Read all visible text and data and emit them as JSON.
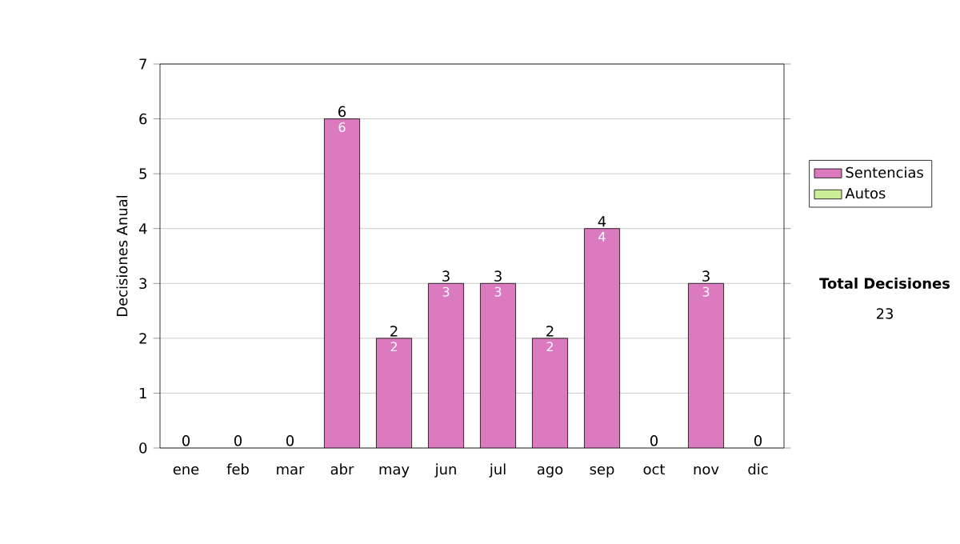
{
  "chart_data": {
    "type": "bar",
    "stacked": true,
    "ylabel": "Decisiones Anual",
    "categories": [
      "ene",
      "feb",
      "mar",
      "abr",
      "may",
      "jun",
      "jul",
      "ago",
      "sep",
      "oct",
      "nov",
      "dic"
    ],
    "series": [
      {
        "name": "Sentencias",
        "color": "#dc7abf",
        "values": [
          0,
          0,
          0,
          6,
          2,
          3,
          3,
          2,
          4,
          0,
          3,
          0
        ],
        "value_labels": [
          null,
          null,
          null,
          "6",
          "2",
          "3",
          "3",
          "2",
          "4",
          null,
          "3",
          null
        ]
      },
      {
        "name": "Autos",
        "color": "#ccee99",
        "values": [
          0,
          0,
          0,
          0,
          0,
          0,
          0,
          0,
          0,
          0,
          0,
          0
        ]
      }
    ],
    "totals": [
      "0",
      "0",
      "0",
      "6",
      "2",
      "3",
      "3",
      "2",
      "4",
      "0",
      "3",
      "0"
    ],
    "ylim": [
      0,
      7
    ],
    "yticks": [
      0,
      1,
      2,
      3,
      4,
      5,
      6,
      7
    ],
    "grid": "y",
    "legend": "right",
    "annotations": [
      "Total Decisiones",
      "23"
    ]
  }
}
